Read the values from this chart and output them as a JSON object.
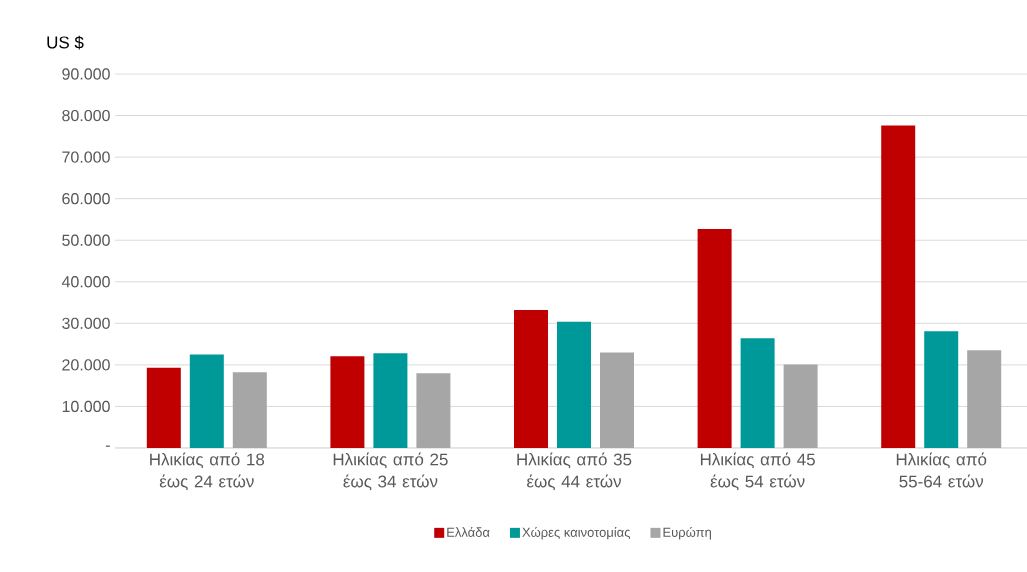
{
  "chart_data": {
    "type": "bar",
    "ylabel": "US $",
    "categories": [
      "Ηλικίας από 18 έως 24 ετών",
      "Ηλικίας από 25 έως 34 ετών",
      "Ηλικίας από 35 έως 44 ετών",
      "Ηλικίας από 45 έως 54 ετών",
      "Ηλικίας από 55-64 ετών"
    ],
    "series": [
      {
        "name": "Ελλάδα",
        "color": "#c00000",
        "values": [
          19300,
          22100,
          33200,
          52700,
          77600
        ]
      },
      {
        "name": "Χώρες καινοτομίας",
        "color": "#009999",
        "values": [
          22500,
          22800,
          30400,
          26400,
          28100
        ]
      },
      {
        "name": "Ευρώπη",
        "color": "#a6a6a6",
        "values": [
          18200,
          18000,
          23000,
          20100,
          23500
        ]
      }
    ],
    "ylim": [
      0,
      90000
    ],
    "yticks": [
      {
        "value": 0,
        "label": "-"
      },
      {
        "value": 10000,
        "label": "10.000"
      },
      {
        "value": 20000,
        "label": "20.000"
      },
      {
        "value": 30000,
        "label": "30.000"
      },
      {
        "value": 40000,
        "label": "40.000"
      },
      {
        "value": 50000,
        "label": "50.000"
      },
      {
        "value": 60000,
        "label": "60.000"
      },
      {
        "value": 70000,
        "label": "70.000"
      },
      {
        "value": 80000,
        "label": "80.000"
      },
      {
        "value": 90000,
        "label": "90.000"
      }
    ],
    "grid": "y",
    "legend": "bottom"
  }
}
